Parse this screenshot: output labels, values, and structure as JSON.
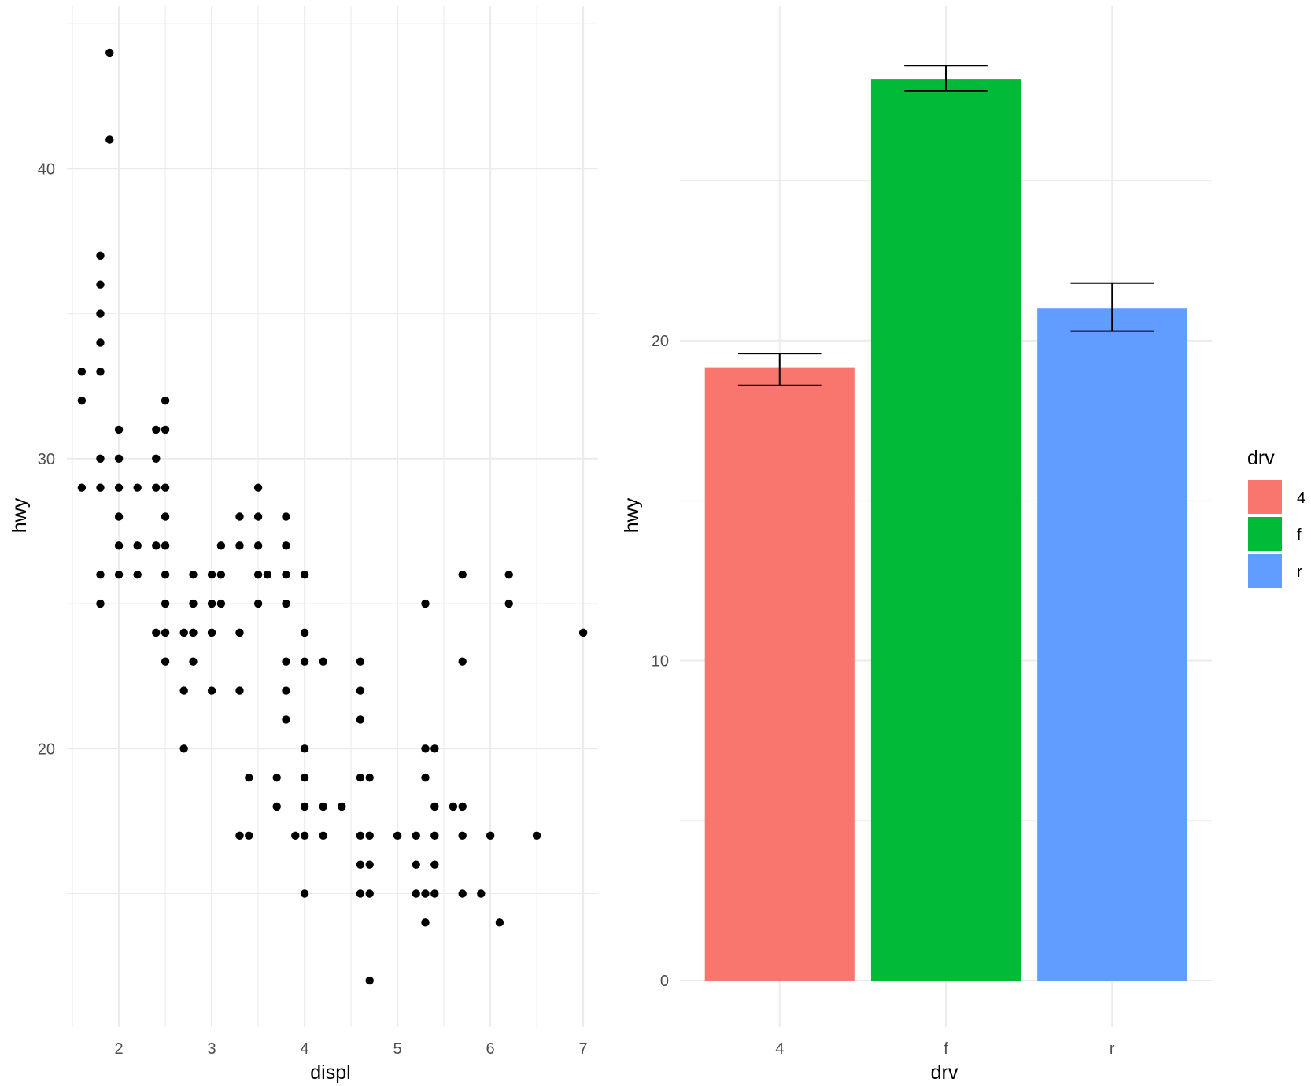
{
  "colors": {
    "c4": "#F8766D",
    "cf": "#00BA38",
    "cr": "#619CFF",
    "grid": "#EBEBEB",
    "point": "#000000"
  },
  "chart_data": [
    {
      "type": "scatter",
      "title": "",
      "xlabel": "displ",
      "ylabel": "hwy",
      "xlim": [
        1.44,
        7.16
      ],
      "ylim": [
        10.4,
        45.6
      ],
      "xticks": [
        "2",
        "3",
        "4",
        "5",
        "6",
        "7"
      ],
      "yticks": [
        "20",
        "30",
        "40"
      ],
      "points": [
        [
          1.6,
          29
        ],
        [
          1.6,
          32
        ],
        [
          1.6,
          33
        ],
        [
          1.8,
          25
        ],
        [
          1.8,
          26
        ],
        [
          1.8,
          29
        ],
        [
          1.8,
          30
        ],
        [
          1.8,
          33
        ],
        [
          1.8,
          34
        ],
        [
          1.8,
          35
        ],
        [
          1.8,
          36
        ],
        [
          1.8,
          37
        ],
        [
          1.9,
          41
        ],
        [
          1.9,
          44
        ],
        [
          2.0,
          26
        ],
        [
          2.0,
          27
        ],
        [
          2.0,
          28
        ],
        [
          2.0,
          29
        ],
        [
          2.0,
          30
        ],
        [
          2.0,
          31
        ],
        [
          2.2,
          26
        ],
        [
          2.2,
          27
        ],
        [
          2.2,
          29
        ],
        [
          2.4,
          24
        ],
        [
          2.4,
          27
        ],
        [
          2.4,
          29
        ],
        [
          2.4,
          30
        ],
        [
          2.4,
          31
        ],
        [
          2.5,
          23
        ],
        [
          2.5,
          24
        ],
        [
          2.5,
          25
        ],
        [
          2.5,
          26
        ],
        [
          2.5,
          27
        ],
        [
          2.5,
          28
        ],
        [
          2.5,
          29
        ],
        [
          2.5,
          31
        ],
        [
          2.5,
          32
        ],
        [
          2.7,
          20
        ],
        [
          2.7,
          22
        ],
        [
          2.7,
          24
        ],
        [
          2.8,
          23
        ],
        [
          2.8,
          24
        ],
        [
          2.8,
          25
        ],
        [
          2.8,
          26
        ],
        [
          3.0,
          22
        ],
        [
          3.0,
          24
        ],
        [
          3.0,
          25
        ],
        [
          3.0,
          26
        ],
        [
          3.1,
          25
        ],
        [
          3.1,
          26
        ],
        [
          3.1,
          27
        ],
        [
          3.3,
          22
        ],
        [
          3.3,
          24
        ],
        [
          3.3,
          27
        ],
        [
          3.3,
          28
        ],
        [
          3.3,
          17
        ],
        [
          3.4,
          17
        ],
        [
          3.4,
          19
        ],
        [
          3.5,
          25
        ],
        [
          3.5,
          26
        ],
        [
          3.5,
          27
        ],
        [
          3.5,
          28
        ],
        [
          3.5,
          29
        ],
        [
          3.6,
          26
        ],
        [
          3.7,
          18
        ],
        [
          3.7,
          19
        ],
        [
          3.8,
          21
        ],
        [
          3.8,
          22
        ],
        [
          3.8,
          23
        ],
        [
          3.8,
          25
        ],
        [
          3.8,
          26
        ],
        [
          3.8,
          27
        ],
        [
          3.8,
          28
        ],
        [
          3.9,
          17
        ],
        [
          4.0,
          15
        ],
        [
          4.0,
          17
        ],
        [
          4.0,
          18
        ],
        [
          4.0,
          19
        ],
        [
          4.0,
          20
        ],
        [
          4.0,
          23
        ],
        [
          4.0,
          24
        ],
        [
          4.0,
          26
        ],
        [
          4.2,
          17
        ],
        [
          4.2,
          18
        ],
        [
          4.2,
          23
        ],
        [
          4.4,
          18
        ],
        [
          4.6,
          15
        ],
        [
          4.6,
          16
        ],
        [
          4.6,
          17
        ],
        [
          4.6,
          19
        ],
        [
          4.6,
          21
        ],
        [
          4.6,
          22
        ],
        [
          4.6,
          23
        ],
        [
          4.7,
          12
        ],
        [
          4.7,
          15
        ],
        [
          4.7,
          16
        ],
        [
          4.7,
          17
        ],
        [
          4.7,
          19
        ],
        [
          5.0,
          17
        ],
        [
          5.2,
          15
        ],
        [
          5.2,
          16
        ],
        [
          5.2,
          17
        ],
        [
          5.3,
          14
        ],
        [
          5.3,
          15
        ],
        [
          5.3,
          19
        ],
        [
          5.3,
          20
        ],
        [
          5.3,
          25
        ],
        [
          5.4,
          15
        ],
        [
          5.4,
          16
        ],
        [
          5.4,
          17
        ],
        [
          5.4,
          18
        ],
        [
          5.4,
          20
        ],
        [
          5.6,
          18
        ],
        [
          5.7,
          15
        ],
        [
          5.7,
          17
        ],
        [
          5.7,
          18
        ],
        [
          5.7,
          23
        ],
        [
          5.7,
          26
        ],
        [
          5.9,
          15
        ],
        [
          6.0,
          17
        ],
        [
          6.1,
          14
        ],
        [
          6.2,
          25
        ],
        [
          6.2,
          26
        ],
        [
          6.5,
          17
        ],
        [
          7.0,
          24
        ]
      ]
    },
    {
      "type": "bar",
      "title": "",
      "xlabel": "drv",
      "ylabel": "hwy",
      "ylim": [
        -1.45,
        30.45
      ],
      "yticks": [
        "0",
        "10",
        "20"
      ],
      "categories": [
        "4",
        "f",
        "r"
      ],
      "values": [
        19.17,
        28.16,
        21.0
      ],
      "errors": [
        [
          18.6,
          19.6
        ],
        [
          27.8,
          28.6
        ],
        [
          20.3,
          21.8
        ]
      ],
      "legend": {
        "title": "drv",
        "position": "right",
        "entries": [
          "4",
          "f",
          "r"
        ]
      }
    }
  ]
}
